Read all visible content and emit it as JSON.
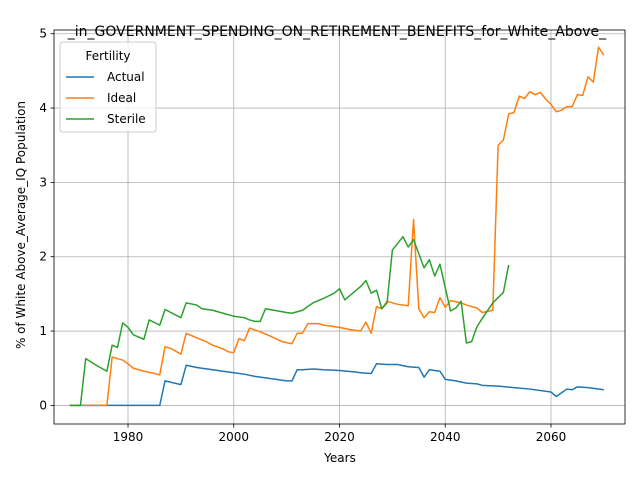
{
  "chart_data": {
    "type": "line",
    "title": "_in_GOVERNMENT_SPENDING_ON_RETIREMENT_BENEFITS_for_White_Above_",
    "xlabel": "Years",
    "ylabel": "% of White Above_Average_IQ Population",
    "xlim": [
      1966,
      2074
    ],
    "ylim": [
      -0.25,
      5.05
    ],
    "xticks": [
      1980,
      2000,
      2020,
      2040,
      2060
    ],
    "yticks": [
      0,
      1,
      2,
      3,
      4,
      5
    ],
    "grid": true,
    "legend": {
      "title": "Fertility",
      "placement": "top-left"
    },
    "series": [
      {
        "name": "Actual",
        "color": "#1f77b4",
        "points": [
          [
            1969,
            0
          ],
          [
            1986,
            0
          ],
          [
            1987,
            0.33
          ],
          [
            1990,
            0.28
          ],
          [
            1991,
            0.54
          ],
          [
            1993,
            0.51
          ],
          [
            1995,
            0.49
          ],
          [
            1998,
            0.46
          ],
          [
            2000,
            0.44
          ],
          [
            2002,
            0.42
          ],
          [
            2004,
            0.39
          ],
          [
            2006,
            0.37
          ],
          [
            2008,
            0.35
          ],
          [
            2010,
            0.33
          ],
          [
            2011,
            0.33
          ],
          [
            2012,
            0.48
          ],
          [
            2013,
            0.48
          ],
          [
            2015,
            0.49
          ],
          [
            2017,
            0.48
          ],
          [
            2020,
            0.47
          ],
          [
            2023,
            0.45
          ],
          [
            2024,
            0.44
          ],
          [
            2026,
            0.43
          ],
          [
            2027,
            0.56
          ],
          [
            2029,
            0.55
          ],
          [
            2031,
            0.55
          ],
          [
            2033,
            0.52
          ],
          [
            2035,
            0.51
          ],
          [
            2036,
            0.38
          ],
          [
            2037,
            0.48
          ],
          [
            2039,
            0.46
          ],
          [
            2040,
            0.35
          ],
          [
            2042,
            0.33
          ],
          [
            2044,
            0.3
          ],
          [
            2046,
            0.29
          ],
          [
            2047,
            0.27
          ],
          [
            2050,
            0.26
          ],
          [
            2053,
            0.24
          ],
          [
            2056,
            0.22
          ],
          [
            2060,
            0.18
          ],
          [
            2061,
            0.12
          ],
          [
            2063,
            0.22
          ],
          [
            2064,
            0.21
          ],
          [
            2065,
            0.25
          ],
          [
            2067,
            0.24
          ],
          [
            2070,
            0.21
          ]
        ]
      },
      {
        "name": "Ideal",
        "color": "#ff7f0e",
        "points": [
          [
            1969,
            0
          ],
          [
            1976,
            0
          ],
          [
            1977,
            0.65
          ],
          [
            1979,
            0.61
          ],
          [
            1980,
            0.56
          ],
          [
            1981,
            0.5
          ],
          [
            1983,
            0.46
          ],
          [
            1985,
            0.43
          ],
          [
            1986,
            0.41
          ],
          [
            1987,
            0.79
          ],
          [
            1988,
            0.77
          ],
          [
            1990,
            0.69
          ],
          [
            1991,
            0.97
          ],
          [
            1993,
            0.91
          ],
          [
            1995,
            0.85
          ],
          [
            1996,
            0.81
          ],
          [
            1998,
            0.76
          ],
          [
            1999,
            0.72
          ],
          [
            2000,
            0.71
          ],
          [
            2001,
            0.9
          ],
          [
            2002,
            0.87
          ],
          [
            2003,
            1.04
          ],
          [
            2005,
            0.99
          ],
          [
            2007,
            0.93
          ],
          [
            2009,
            0.86
          ],
          [
            2011,
            0.83
          ],
          [
            2012,
            0.97
          ],
          [
            2013,
            0.97
          ],
          [
            2014,
            1.1
          ],
          [
            2016,
            1.1
          ],
          [
            2017,
            1.08
          ],
          [
            2018,
            1.07
          ],
          [
            2020,
            1.05
          ],
          [
            2022,
            1.02
          ],
          [
            2024,
            1.0
          ],
          [
            2025,
            1.12
          ],
          [
            2026,
            0.97
          ],
          [
            2027,
            1.33
          ],
          [
            2028,
            1.3
          ],
          [
            2029,
            1.4
          ],
          [
            2031,
            1.36
          ],
          [
            2033,
            1.34
          ],
          [
            2034,
            2.5
          ],
          [
            2035,
            1.3
          ],
          [
            2036,
            1.18
          ],
          [
            2037,
            1.26
          ],
          [
            2038,
            1.25
          ],
          [
            2039,
            1.45
          ],
          [
            2040,
            1.32
          ],
          [
            2041,
            1.41
          ],
          [
            2043,
            1.38
          ],
          [
            2044,
            1.35
          ],
          [
            2046,
            1.31
          ],
          [
            2047,
            1.25
          ],
          [
            2049,
            1.28
          ],
          [
            2050,
            3.5
          ],
          [
            2051,
            3.57
          ],
          [
            2052,
            3.92
          ],
          [
            2053,
            3.94
          ],
          [
            2054,
            4.16
          ],
          [
            2055,
            4.13
          ],
          [
            2056,
            4.22
          ],
          [
            2057,
            4.18
          ],
          [
            2058,
            4.21
          ],
          [
            2059,
            4.12
          ],
          [
            2060,
            4.05
          ],
          [
            2061,
            3.95
          ],
          [
            2062,
            3.97
          ],
          [
            2063,
            4.02
          ],
          [
            2064,
            4.02
          ],
          [
            2065,
            4.18
          ],
          [
            2066,
            4.17
          ],
          [
            2067,
            4.42
          ],
          [
            2068,
            4.35
          ],
          [
            2069,
            4.82
          ],
          [
            2070,
            4.71
          ]
        ]
      },
      {
        "name": "Sterile",
        "color": "#2ca02c",
        "points": [
          [
            1969,
            0
          ],
          [
            1971,
            0
          ],
          [
            1972,
            0.63
          ],
          [
            1974,
            0.54
          ],
          [
            1976,
            0.46
          ],
          [
            1977,
            0.81
          ],
          [
            1978,
            0.78
          ],
          [
            1979,
            1.11
          ],
          [
            1980,
            1.05
          ],
          [
            1981,
            0.95
          ],
          [
            1983,
            0.89
          ],
          [
            1984,
            1.15
          ],
          [
            1986,
            1.08
          ],
          [
            1987,
            1.29
          ],
          [
            1990,
            1.18
          ],
          [
            1991,
            1.38
          ],
          [
            1993,
            1.35
          ],
          [
            1994,
            1.3
          ],
          [
            1996,
            1.28
          ],
          [
            1998,
            1.24
          ],
          [
            2000,
            1.2
          ],
          [
            2002,
            1.18
          ],
          [
            2003,
            1.15
          ],
          [
            2004,
            1.13
          ],
          [
            2005,
            1.13
          ],
          [
            2006,
            1.3
          ],
          [
            2010,
            1.25
          ],
          [
            2011,
            1.24
          ],
          [
            2013,
            1.28
          ],
          [
            2014,
            1.33
          ],
          [
            2015,
            1.38
          ],
          [
            2017,
            1.44
          ],
          [
            2019,
            1.51
          ],
          [
            2020,
            1.57
          ],
          [
            2021,
            1.42
          ],
          [
            2022,
            1.48
          ],
          [
            2024,
            1.6
          ],
          [
            2025,
            1.68
          ],
          [
            2026,
            1.51
          ],
          [
            2027,
            1.55
          ],
          [
            2028,
            1.3
          ],
          [
            2029,
            1.38
          ],
          [
            2030,
            2.09
          ],
          [
            2032,
            2.27
          ],
          [
            2033,
            2.13
          ],
          [
            2034,
            2.23
          ],
          [
            2036,
            1.85
          ],
          [
            2037,
            1.96
          ],
          [
            2038,
            1.74
          ],
          [
            2039,
            1.9
          ],
          [
            2041,
            1.27
          ],
          [
            2042,
            1.31
          ],
          [
            2043,
            1.4
          ],
          [
            2044,
            0.84
          ],
          [
            2045,
            0.86
          ],
          [
            2046,
            1.06
          ],
          [
            2047,
            1.17
          ],
          [
            2049,
            1.38
          ],
          [
            2051,
            1.52
          ],
          [
            2052,
            1.89
          ]
        ]
      }
    ]
  }
}
